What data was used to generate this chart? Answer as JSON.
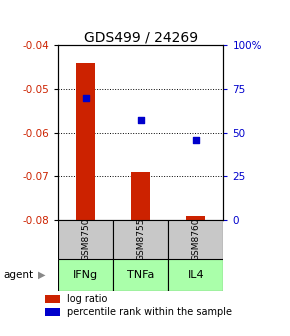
{
  "title": "GDS499 / 24269",
  "samples": [
    "GSM8750",
    "GSM8755",
    "GSM8760"
  ],
  "agents": [
    "IFNg",
    "TNFa",
    "IL4"
  ],
  "bar_values": [
    -0.044,
    -0.069,
    -0.079
  ],
  "bar_bottom": -0.08,
  "bar_color": "#cc2200",
  "blue_dot_pct": [
    70,
    57,
    46
  ],
  "ylim_left": [
    -0.08,
    -0.04
  ],
  "ylim_right": [
    0,
    100
  ],
  "yticks_left": [
    -0.08,
    -0.07,
    -0.06,
    -0.05,
    -0.04
  ],
  "yticks_right": [
    0,
    25,
    50,
    75,
    100
  ],
  "ytick_labels_right": [
    "0",
    "25",
    "50",
    "75",
    "100%"
  ],
  "grid_values": [
    -0.05,
    -0.06,
    -0.07
  ],
  "bar_gray": "#c8c8c8",
  "agent_green": "#aaffaa",
  "title_fontsize": 10,
  "axis_label_color_left": "#cc2200",
  "axis_label_color_right": "#0000cc",
  "legend_red_label": "log ratio",
  "legend_blue_label": "percentile rank within the sample",
  "bar_width": 0.35
}
